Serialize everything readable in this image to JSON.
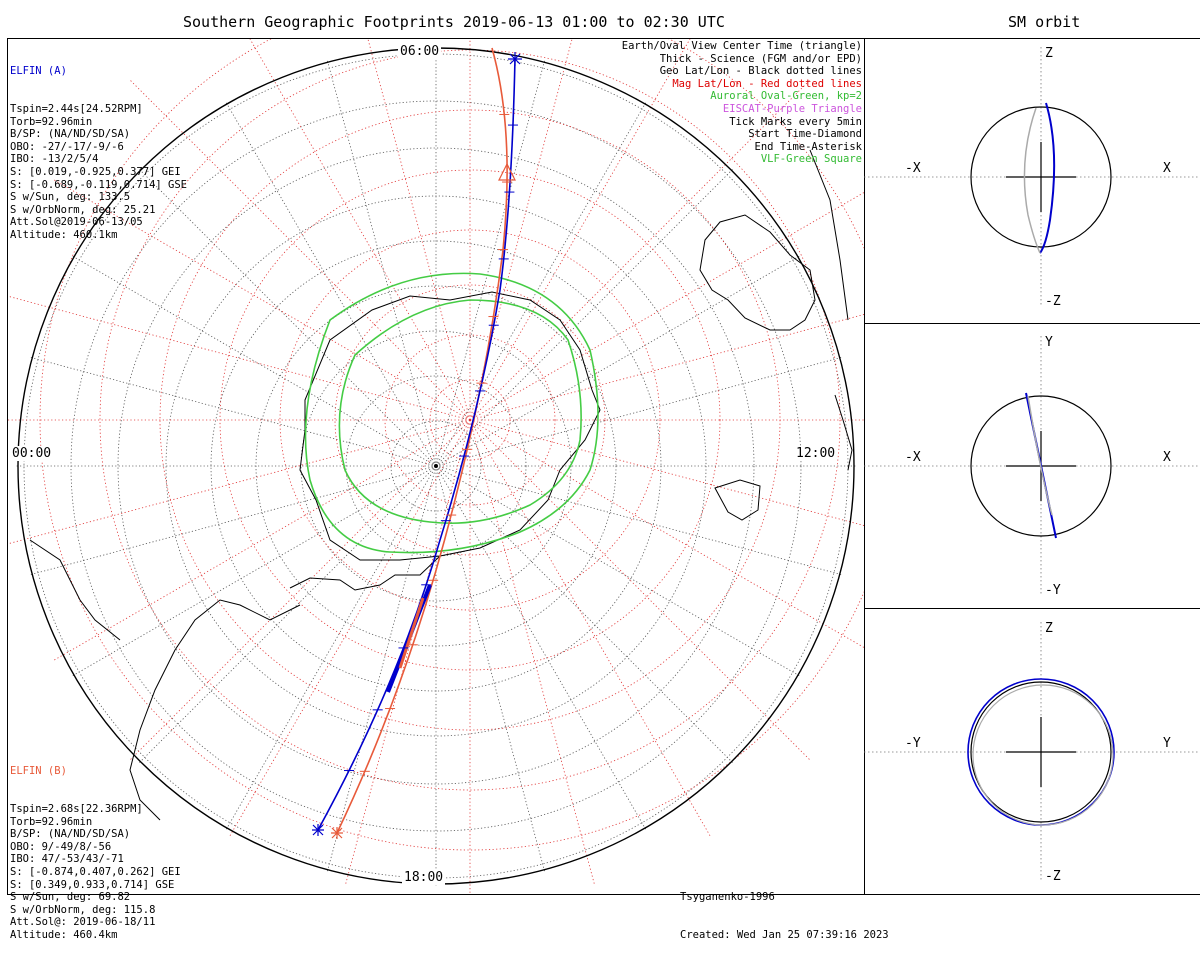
{
  "header": {
    "title": "Southern Geographic Footprints 2019-06-13 01:00 to 02:30 UTC",
    "sm_title": "SM orbit"
  },
  "map": {
    "time_labels": {
      "top": "06:00",
      "left": "00:00",
      "right": "12:00",
      "bottom": "18:00"
    }
  },
  "sat_a": {
    "name": "ELFIN (A)",
    "color": "#0000cc",
    "lines": [
      "Tspin=2.44s[24.52RPM]",
      "Torb=92.96min",
      "B/SP: (NA/ND/SD/SA)",
      "OBO: -27/-17/-9/-6",
      "IBO: -13/2/5/4",
      "S: [0.019,-0.925,0.377] GEI",
      "S: [-0.689,-0.119,0.714] GSE",
      "S w/Sun, deg: 133.5",
      "S w/OrbNorm, deg: 25.21",
      "Att.Sol@2019-06-13/05",
      "Altitude: 460.1km"
    ]
  },
  "sat_b": {
    "name": "ELFIN (B)",
    "color": "#e85a3a",
    "lines": [
      "Tspin=2.68s[22.36RPM]",
      "Torb=92.96min",
      "B/SP: (NA/ND/SD/SA)",
      "OBO: 9/-49/8/-56",
      "IBO: 47/-53/43/-71",
      "S: [-0.874,0.407,0.262] GEI",
      "S: [0.349,0.933,0.714] GSE",
      "S w/Sun, deg: 69.82",
      "S w/OrbNorm, deg: 115.8",
      "Att.Sol@: 2019-06-18/11",
      "Altitude: 460.4km"
    ]
  },
  "legend": [
    {
      "text": "Earth/Oval View Center Time (triangle)",
      "color": "#000000"
    },
    {
      "text": "Thick - Science (FGM and/or EPD)",
      "color": "#000000"
    },
    {
      "text": "Geo Lat/Lon - Black dotted lines",
      "color": "#000000"
    },
    {
      "text": "Mag Lat/Lon - Red dotted lines",
      "color": "#dd0000"
    },
    {
      "text": "Auroral Oval-Green, kp=2",
      "color": "#33bb33"
    },
    {
      "text": "EISCAT-Purple Triangle",
      "color": "#cc55dd"
    },
    {
      "text": "Tick Marks every 5min",
      "color": "#000000"
    },
    {
      "text": "Start Time-Diamond",
      "color": "#000000"
    },
    {
      "text": "End Time-Asterisk",
      "color": "#000000"
    },
    {
      "text": "VLF-Green Square",
      "color": "#33bb33"
    }
  ],
  "credits": {
    "model": "Tsyganenko-1996",
    "created": "Created: Wed Jan 25 07:39:16 2023"
  },
  "orbit_panels": [
    {
      "top": "Z",
      "bottom": "-Z",
      "left": "-X",
      "right": "X"
    },
    {
      "top": "Y",
      "bottom": "-Y",
      "left": "-X",
      "right": "X"
    },
    {
      "top": "Z",
      "bottom": "-Z",
      "left": "-Y",
      "right": "Y"
    }
  ],
  "chart_data": {
    "type": "scatter",
    "title": "Southern Geographic Footprints 2019-06-13 01:00 to 02:30 UTC",
    "projection": "polar, south pole centered",
    "local_time_labels": [
      "06:00",
      "00:00",
      "12:00",
      "18:00"
    ],
    "series": [
      {
        "name": "ELFIN (A)",
        "color": "#0000cc"
      },
      {
        "name": "ELFIN (B)",
        "color": "#e85a3a"
      },
      {
        "name": "Auroral Oval-Green, kp=2",
        "color": "#33bb33"
      }
    ]
  }
}
